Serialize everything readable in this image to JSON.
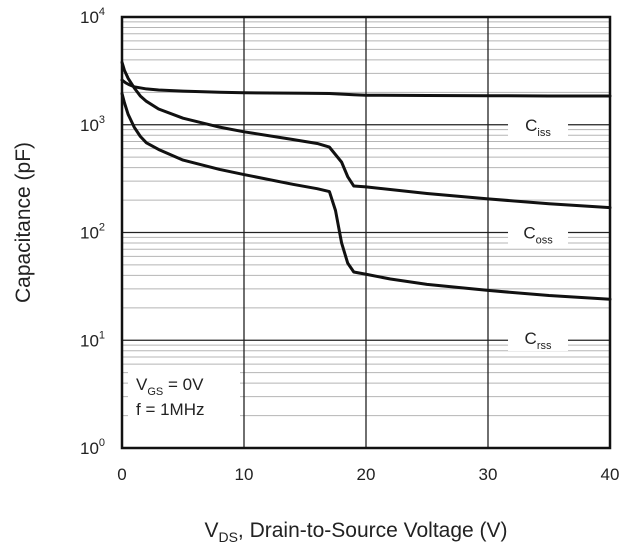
{
  "chart_data": {
    "type": "line",
    "xlabel": {
      "prefix": "V",
      "sub": "DS",
      "rest": ", Drain-to-Source Voltage (V)"
    },
    "ylabel": "Capacitance (pF)",
    "xlim": [
      0,
      40
    ],
    "ylim": [
      1,
      10000
    ],
    "y_scale": "log",
    "x_ticks": [
      "0",
      "10",
      "20",
      "30",
      "40"
    ],
    "y_ticks": [
      {
        "base": "10",
        "exp": "0"
      },
      {
        "base": "10",
        "exp": "1"
      },
      {
        "base": "10",
        "exp": "2"
      },
      {
        "base": "10",
        "exp": "3"
      },
      {
        "base": "10",
        "exp": "4"
      }
    ],
    "grid": true,
    "conditions": [
      {
        "main": "V",
        "sub": "GS",
        "rest": " = 0V"
      },
      {
        "main": "f = 1MHz",
        "sub": "",
        "rest": ""
      }
    ],
    "series": [
      {
        "name": "Ciss",
        "label_main": "C",
        "label_sub": "iss",
        "x": [
          0,
          0.3,
          0.6,
          1,
          2,
          3,
          5,
          8,
          10,
          15,
          17,
          19,
          20,
          25,
          30,
          35,
          40
        ],
        "y": [
          2600,
          2450,
          2350,
          2250,
          2150,
          2100,
          2050,
          2000,
          1980,
          1960,
          1950,
          1900,
          1880,
          1870,
          1860,
          1850,
          1850
        ]
      },
      {
        "name": "Coss",
        "label_main": "C",
        "label_sub": "oss",
        "x": [
          0,
          0.2,
          0.5,
          1,
          1.5,
          2,
          3,
          5,
          8,
          10,
          14,
          16,
          17,
          18,
          18.5,
          19,
          20,
          25,
          30,
          35,
          40
        ],
        "y": [
          3800,
          3200,
          2700,
          2200,
          1850,
          1650,
          1400,
          1150,
          950,
          860,
          730,
          670,
          620,
          450,
          330,
          270,
          265,
          230,
          205,
          185,
          170
        ]
      },
      {
        "name": "Crss",
        "label_main": "C",
        "label_sub": "rss",
        "x": [
          0,
          0.2,
          0.5,
          1,
          1.5,
          2,
          3,
          5,
          8,
          10,
          14,
          16,
          17,
          17.5,
          18,
          18.5,
          19,
          20,
          22,
          25,
          30,
          35,
          40
        ],
        "y": [
          1950,
          1600,
          1250,
          950,
          780,
          680,
          590,
          470,
          385,
          345,
          280,
          255,
          240,
          160,
          80,
          52,
          43,
          41,
          37,
          33,
          29,
          26,
          24
        ]
      }
    ]
  }
}
